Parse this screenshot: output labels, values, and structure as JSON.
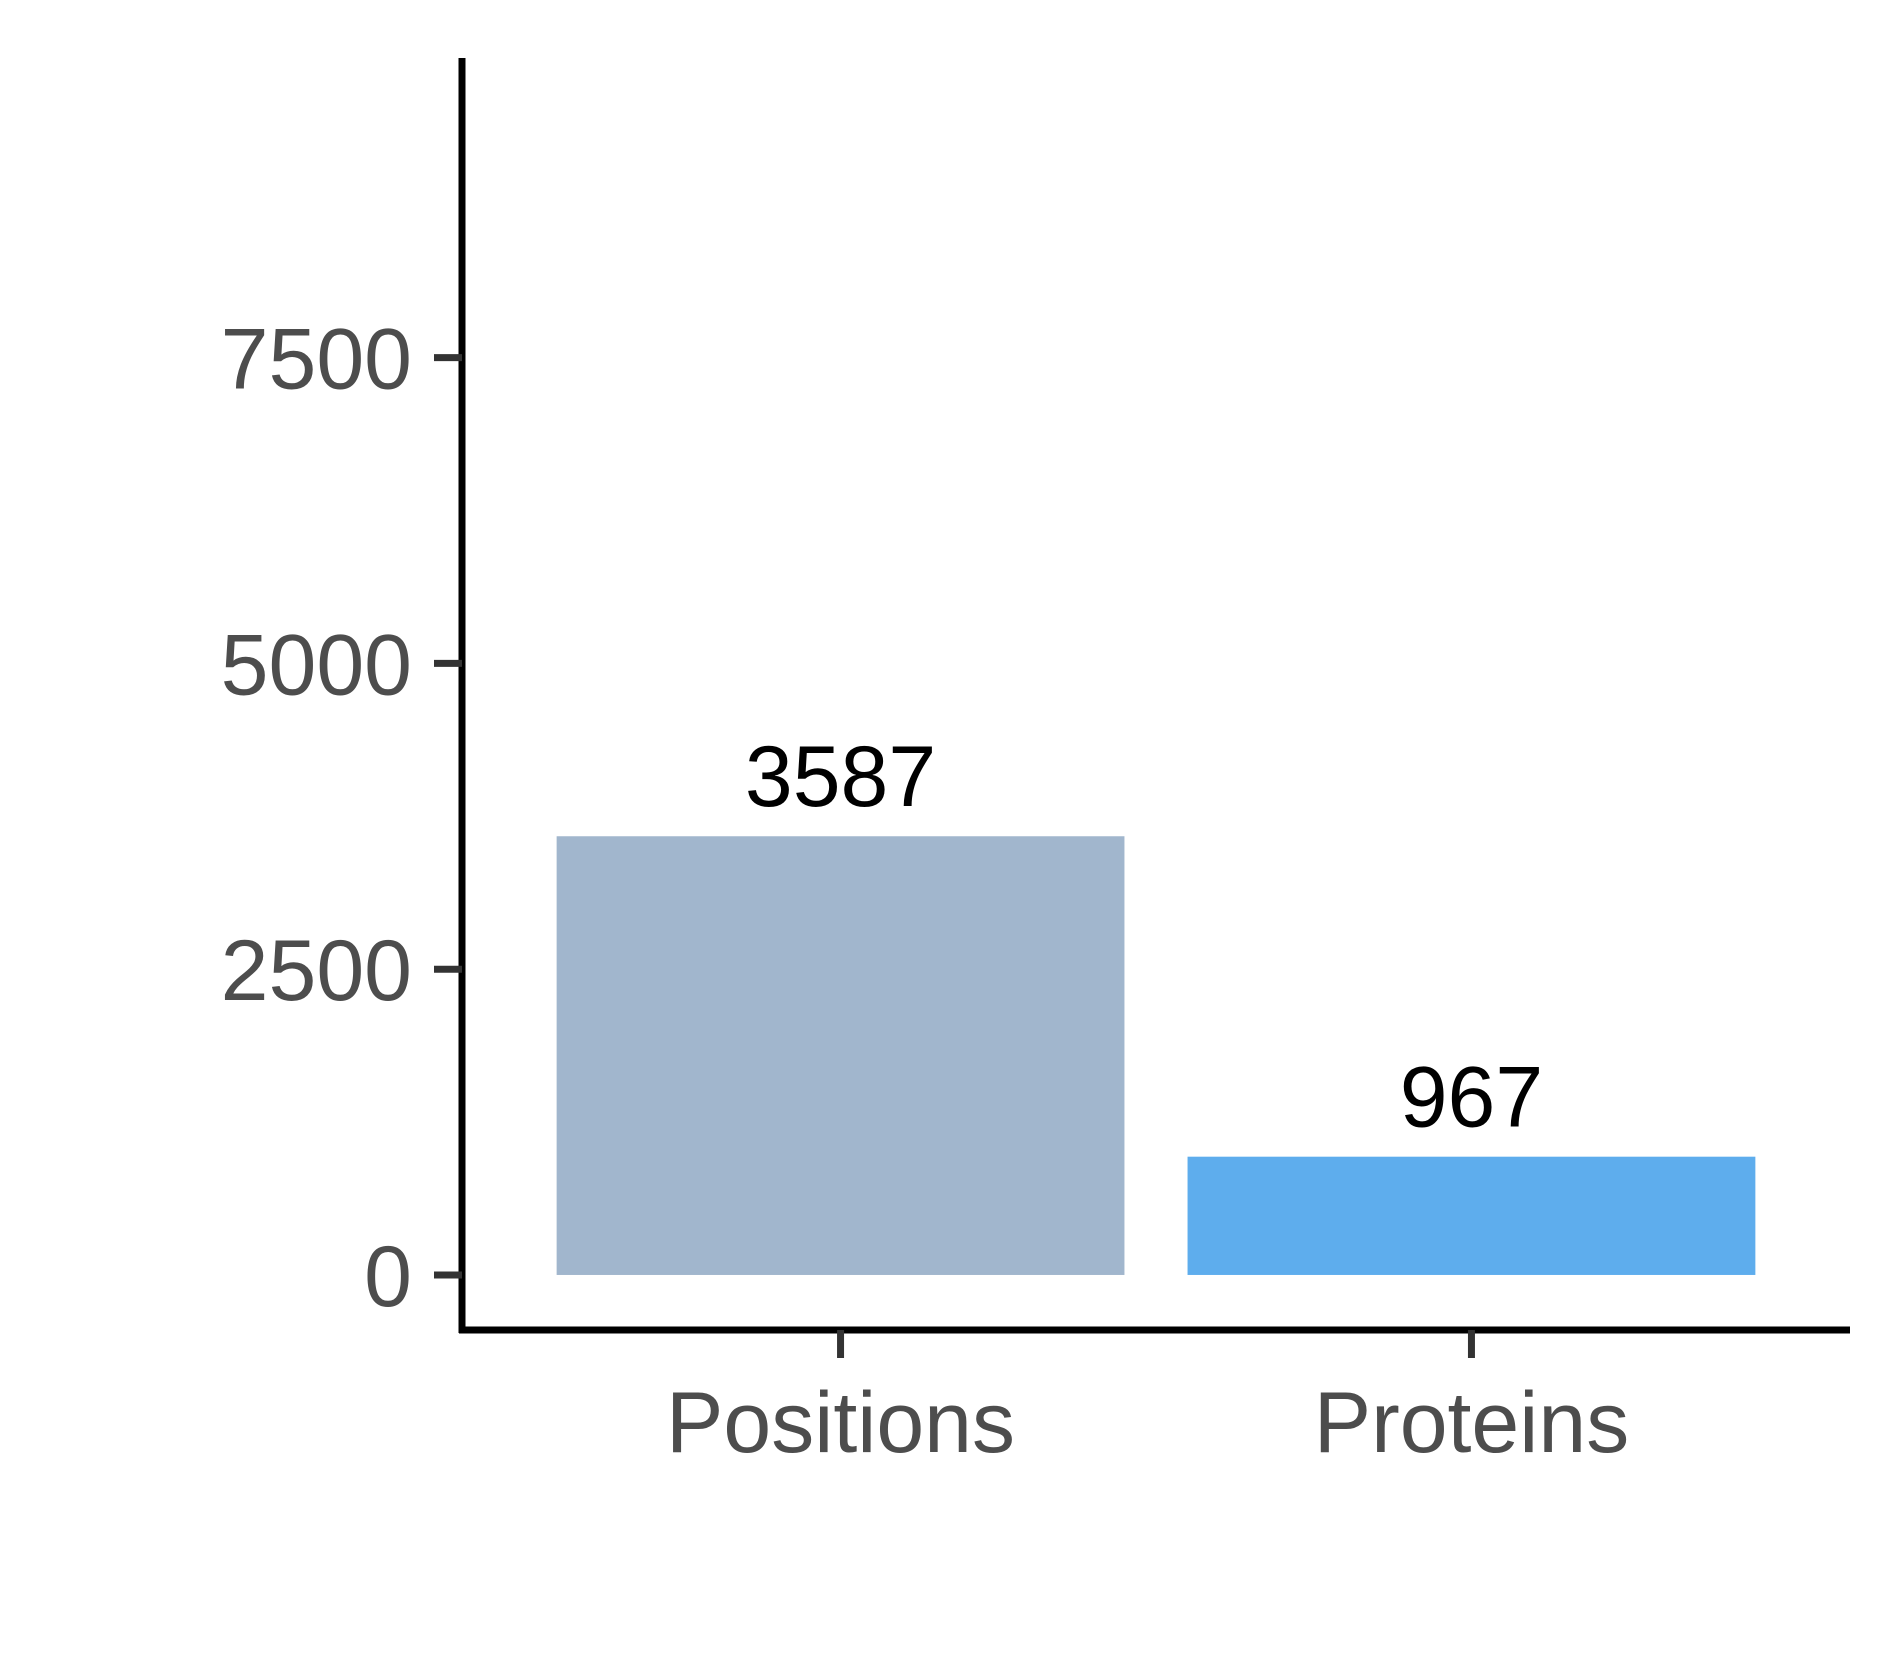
{
  "chart_data": {
    "type": "bar",
    "title": "",
    "xlabel": "",
    "ylabel": "",
    "categories": [
      "Positions",
      "Proteins"
    ],
    "values": [
      3587,
      967
    ],
    "data_labels": [
      "3587",
      "967"
    ],
    "bar_colors": [
      "#a1b6cd",
      "#5eaded"
    ],
    "ylim": [
      -450,
      9950
    ],
    "yticks": [
      0,
      2500,
      5000,
      7500
    ],
    "ytick_labels": [
      "0",
      "2500",
      "5000",
      "7500"
    ],
    "grid": false,
    "legend": "none"
  }
}
